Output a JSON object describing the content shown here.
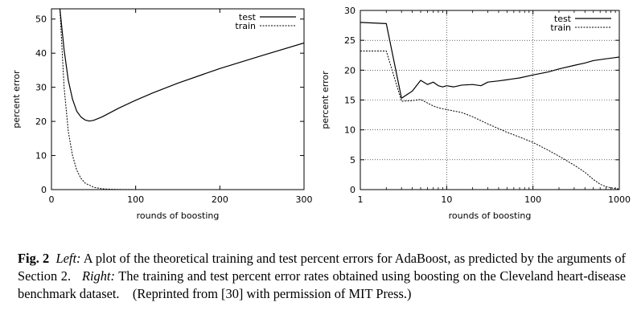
{
  "caption": {
    "fig_label": "Fig. 2",
    "left_label": "Left:",
    "left_text": "A plot of the theoretical training and test percent errors for AdaBoost, as predicted by the arguments of Section 2.",
    "right_label": "Right:",
    "right_text": "The training and test percent error rates obtained using boosting on the Cleveland heart-disease benchmark dataset.",
    "reprint": "(Reprinted from [30] with permission of MIT Press.)"
  },
  "chart_data": [
    {
      "type": "line",
      "xlabel": "rounds of boosting",
      "ylabel": "percent error",
      "xlim": [
        0,
        300
      ],
      "ylim": [
        0,
        53
      ],
      "xticks": [
        0,
        100,
        200,
        300
      ],
      "yticks": [
        0,
        10,
        20,
        30,
        40,
        50
      ],
      "grid": false,
      "legend": "top-right",
      "series": [
        {
          "name": "test",
          "style": "solid",
          "x": [
            10,
            15,
            20,
            25,
            30,
            35,
            40,
            45,
            50,
            60,
            70,
            80,
            100,
            120,
            150,
            200,
            250,
            300
          ],
          "y": [
            53,
            41,
            32,
            26.5,
            23,
            21.3,
            20.4,
            20.1,
            20.3,
            21.3,
            22.6,
            23.9,
            26.2,
            28.3,
            31.2,
            35.5,
            39.3,
            43
          ]
        },
        {
          "name": "train",
          "style": "dashed",
          "x": [
            10,
            15,
            20,
            25,
            30,
            35,
            40,
            50,
            60,
            70,
            80,
            100,
            150,
            200,
            300
          ],
          "y": [
            53,
            30,
            17,
            10,
            5.7,
            3.3,
            1.9,
            0.7,
            0.25,
            0.1,
            0.05,
            0.01,
            0,
            0,
            0
          ]
        }
      ]
    },
    {
      "type": "line",
      "xlabel": "rounds of boosting",
      "ylabel": "percent error",
      "xscale": "log",
      "xlim": [
        1,
        1000
      ],
      "ylim": [
        0,
        30
      ],
      "xticks": [
        1,
        10,
        100,
        1000
      ],
      "yticks": [
        0,
        5,
        10,
        15,
        20,
        25,
        30
      ],
      "grid": true,
      "legend": "top-right",
      "series": [
        {
          "name": "test",
          "style": "solid",
          "x": [
            1,
            2,
            3,
            4,
            5,
            6,
            7,
            8,
            9,
            10,
            12,
            15,
            20,
            25,
            30,
            40,
            50,
            70,
            100,
            150,
            200,
            300,
            400,
            500,
            700,
            1000
          ],
          "y": [
            28,
            27.8,
            15.3,
            16.5,
            18.3,
            17.6,
            18.0,
            17.4,
            17.2,
            17.4,
            17.2,
            17.5,
            17.6,
            17.4,
            18.0,
            18.2,
            18.4,
            18.7,
            19.2,
            19.7,
            20.2,
            20.8,
            21.2,
            21.6,
            21.9,
            22.2
          ]
        },
        {
          "name": "train",
          "style": "dashed",
          "x": [
            1,
            2,
            3,
            4,
            5,
            6,
            7,
            8,
            10,
            15,
            20,
            30,
            50,
            70,
            100,
            150,
            200,
            300,
            400,
            500,
            600,
            700,
            800,
            1000
          ],
          "y": [
            23.2,
            23.2,
            14.8,
            14.9,
            15.1,
            14.5,
            14.0,
            13.7,
            13.4,
            12.9,
            12.2,
            11.0,
            9.6,
            8.8,
            7.9,
            6.6,
            5.6,
            4.1,
            2.9,
            1.7,
            0.9,
            0.5,
            0.3,
            0.1
          ]
        }
      ]
    }
  ]
}
